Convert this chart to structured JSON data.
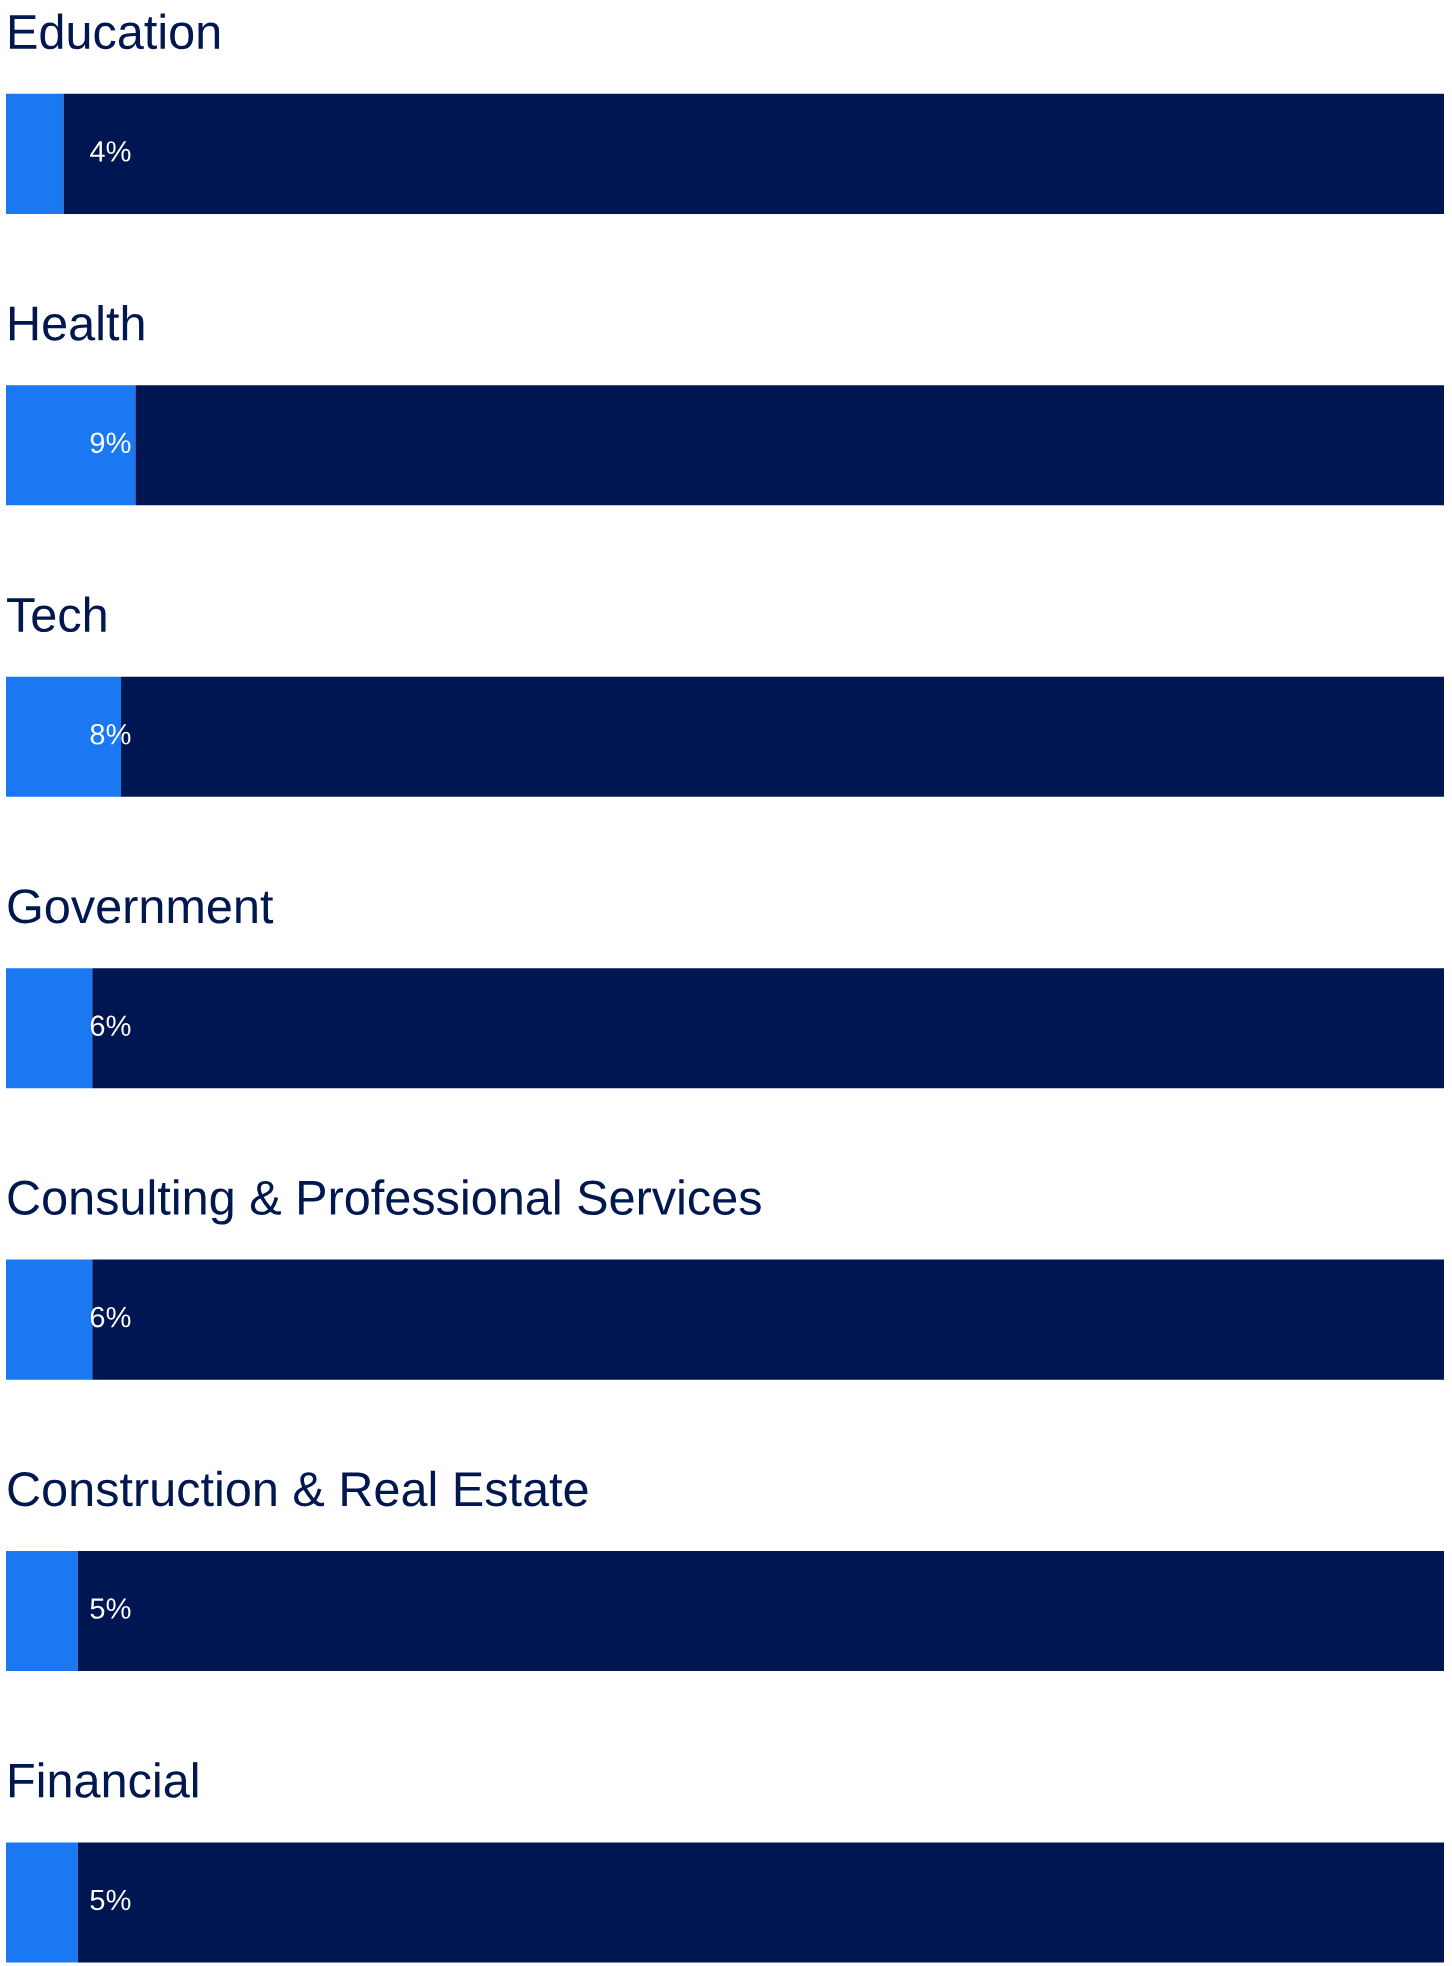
{
  "chart_data": {
    "type": "bar",
    "orientation": "horizontal",
    "stacked": true,
    "categories": [
      "Education",
      "Health",
      "Tech",
      "Government",
      "Consulting & Professional Services",
      "Construction & Real Estate",
      "Financial"
    ],
    "series": [
      {
        "color": "#1a78f2",
        "values": [
          4,
          9,
          8,
          6,
          6,
          5,
          5
        ],
        "value_labels": [
          "4%",
          "9%",
          "8%",
          "6%",
          "6%",
          "5%",
          "5%"
        ]
      },
      {
        "color": "#001653",
        "values": [
          96,
          91,
          92,
          94,
          94,
          95,
          95
        ]
      }
    ],
    "xlim": [
      0,
      100
    ],
    "tick_labels": false
  }
}
